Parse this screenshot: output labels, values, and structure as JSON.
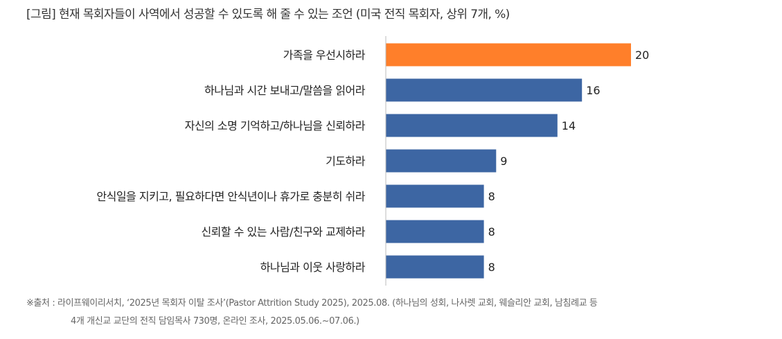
{
  "title": "[그림] 현재 목회자들이 사역에서 성공할 수 있도록 해 줄 수 있는 조언 (미국 전직 목회자, 상위 7개, %)",
  "source": {
    "line1": "※출처 : 라이프웨이리서치, ‘2025년 목회자 이탈 조사’(Pastor Attrition Study 2025), 2025.08. (하나님의 성회, 나사렛 교회, 웨슬리안 교회, 남침례교 등",
    "line2": "4개 개신교 교단의 전직 담임목사 730명, 온라인 조사, 2025.05.06.~07.06.)"
  },
  "chart_data": {
    "type": "bar",
    "orientation": "horizontal",
    "title": "[그림] 현재 목회자들이 사역에서 성공할 수 있도록 해 줄 수 있는 조언 (미국 전직 목회자, 상위 7개, %)",
    "categories": [
      "가족을 우선시하라",
      "하나님과 시간 보내고/말씀을 읽어라",
      "자신의 소명 기억하고/하나님을 신뢰하라",
      "기도하라",
      "안식일을 지키고, 필요하다면 안식년이나 휴가로 충분히 쉬라",
      "신뢰할 수 있는 사람/친구와 교제하라",
      "하나님과 이웃 사랑하라"
    ],
    "values": [
      20,
      16,
      14,
      9,
      8,
      8,
      8
    ],
    "value_labels": [
      "20",
      "16",
      "14",
      "9",
      "8",
      "8",
      "8"
    ],
    "unit": "%",
    "xlim": [
      0,
      20
    ],
    "highlight_index": 0,
    "colors": {
      "highlight": "#FF7F2A",
      "default": "#3D66A3",
      "axis": "#BBBBBB"
    }
  }
}
